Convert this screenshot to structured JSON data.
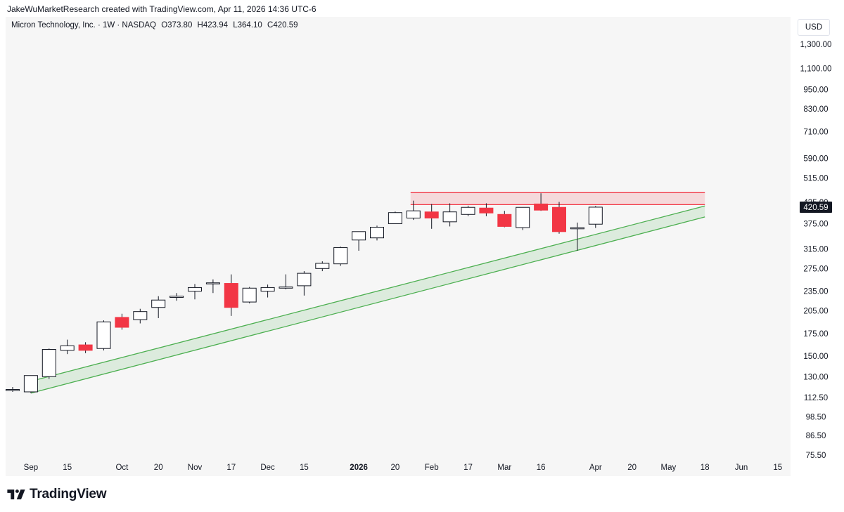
{
  "header": {
    "credit": "JakeWuMarketResearch created with TradingView.com, Apr 11, 2026 14:36 UTC-6"
  },
  "legend": {
    "symbol": "Micron Technology, Inc. · 1W · NASDAQ",
    "open": "O373.80",
    "high": "H423.94",
    "low": "L364.10",
    "close": "C420.59"
  },
  "price_axis": {
    "currency": "USD",
    "last_price": "420.59"
  },
  "footer": {
    "brand": "TradingView"
  },
  "colors": {
    "up": "#ffffff",
    "down": "#f23645",
    "wick": "#131722",
    "resistance": "#f23645",
    "support": "#4caf50",
    "background": "#f6f6f6"
  },
  "chart_data": {
    "type": "candlestick",
    "scale": "log",
    "interval": "1W",
    "y_ticks": [
      "1,300.00",
      "1,100.00",
      "950.00",
      "830.00",
      "710.00",
      "590.00",
      "515.00",
      "435.00",
      "375.00",
      "315.00",
      "275.00",
      "235.00",
      "205.00",
      "175.00",
      "150.00",
      "130.00",
      "112.50",
      "98.50",
      "86.50",
      "75.50"
    ],
    "x_ticks": [
      "Sep",
      "15",
      "Oct",
      "20",
      "Nov",
      "17",
      "Dec",
      "15",
      "2026",
      "20",
      "Feb",
      "17",
      "Mar",
      "16",
      "Apr",
      "20",
      "May",
      "18",
      "Jun",
      "15"
    ],
    "x_ticks_bold": [
      "2026"
    ],
    "candles": [
      {
        "o": 119,
        "h": 121,
        "l": 117,
        "c": 119
      },
      {
        "o": 117,
        "h": 131,
        "l": 116,
        "c": 131
      },
      {
        "o": 130,
        "h": 158,
        "l": 128,
        "c": 157
      },
      {
        "o": 156,
        "h": 168,
        "l": 152,
        "c": 161
      },
      {
        "o": 162,
        "h": 165,
        "l": 153,
        "c": 156
      },
      {
        "o": 158,
        "h": 192,
        "l": 156,
        "c": 190
      },
      {
        "o": 196,
        "h": 201,
        "l": 180,
        "c": 183
      },
      {
        "o": 193,
        "h": 208,
        "l": 188,
        "c": 204
      },
      {
        "o": 210,
        "h": 227,
        "l": 195,
        "c": 221
      },
      {
        "o": 225,
        "h": 232,
        "l": 220,
        "c": 227
      },
      {
        "o": 235,
        "h": 247,
        "l": 222,
        "c": 241
      },
      {
        "o": 249,
        "h": 255,
        "l": 232,
        "c": 249
      },
      {
        "o": 248,
        "h": 264,
        "l": 198,
        "c": 210
      },
      {
        "o": 218,
        "h": 242,
        "l": 216,
        "c": 240
      },
      {
        "o": 235,
        "h": 246,
        "l": 225,
        "c": 241
      },
      {
        "o": 240,
        "h": 264,
        "l": 238,
        "c": 242
      },
      {
        "o": 244,
        "h": 270,
        "l": 228,
        "c": 266
      },
      {
        "o": 275,
        "h": 289,
        "l": 270,
        "c": 285
      },
      {
        "o": 284,
        "h": 320,
        "l": 280,
        "c": 318
      },
      {
        "o": 335,
        "h": 355,
        "l": 311,
        "c": 355
      },
      {
        "o": 340,
        "h": 370,
        "l": 334,
        "c": 366
      },
      {
        "o": 375,
        "h": 408,
        "l": 375,
        "c": 405
      },
      {
        "o": 390,
        "h": 440,
        "l": 385,
        "c": 410
      },
      {
        "o": 407,
        "h": 430,
        "l": 362,
        "c": 390
      },
      {
        "o": 380,
        "h": 432,
        "l": 368,
        "c": 407
      },
      {
        "o": 400,
        "h": 425,
        "l": 395,
        "c": 420
      },
      {
        "o": 418,
        "h": 432,
        "l": 395,
        "c": 404
      },
      {
        "o": 400,
        "h": 410,
        "l": 366,
        "c": 368
      },
      {
        "o": 365,
        "h": 420,
        "l": 359,
        "c": 420
      },
      {
        "o": 430,
        "h": 463,
        "l": 410,
        "c": 412
      },
      {
        "o": 420,
        "h": 436,
        "l": 350,
        "c": 355
      },
      {
        "o": 362,
        "h": 378,
        "l": 311,
        "c": 365
      },
      {
        "o": 373.8,
        "h": 423.94,
        "l": 364.1,
        "c": 420.59
      }
    ],
    "resistance_zone": {
      "low": 428,
      "high": 465
    },
    "support_channel": {
      "upper": {
        "x0": 1,
        "y0": 126,
        "x1": 38,
        "y1": 424
      },
      "lower": {
        "x0": 1,
        "y0": 116,
        "x1": 38,
        "y1": 393
      }
    },
    "grid": false,
    "legend_position": "top-left"
  }
}
